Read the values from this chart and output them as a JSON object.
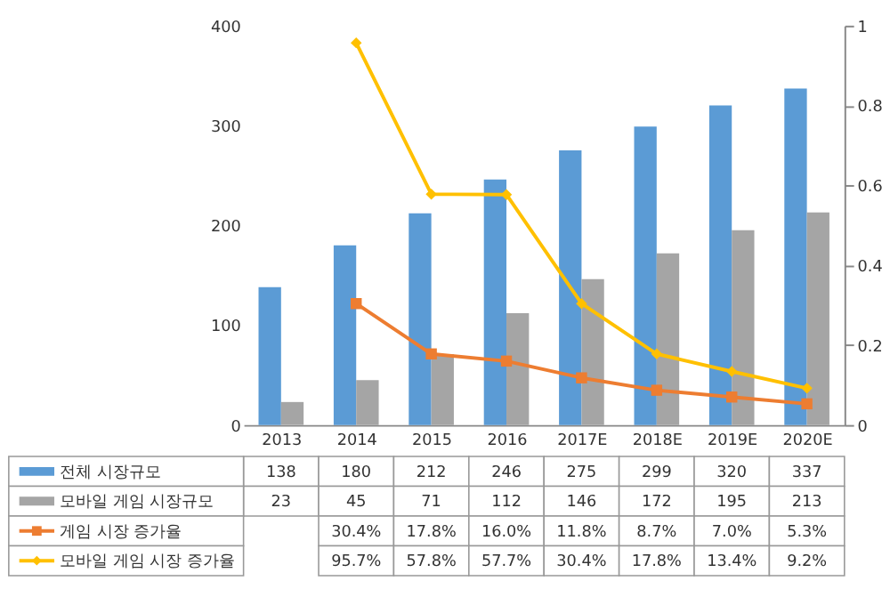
{
  "chart_data": {
    "type": "bar",
    "categories": [
      "2013",
      "2014",
      "2015",
      "2016",
      "2017E",
      "2018E",
      "2019E",
      "2020E"
    ],
    "series": [
      {
        "name": "전체 시장규모",
        "color": "#5b9bd5",
        "values": [
          138,
          180,
          212,
          246,
          275,
          299,
          320,
          337
        ]
      },
      {
        "name": "모바일 게임 시장규모",
        "color": "#a5a5a5",
        "values": [
          23,
          45,
          71,
          112,
          146,
          172,
          195,
          213
        ]
      },
      {
        "name": "게임 시장 증가율",
        "type": "line",
        "axis": "y2",
        "marker": "square",
        "color": "#ed7d31",
        "values": [
          null,
          0.304,
          0.178,
          0.16,
          0.118,
          0.087,
          0.07,
          0.053
        ],
        "value_labels": [
          null,
          "30.4%",
          "17.8%",
          "16.0%",
          "11.8%",
          "8.7%",
          "7.0%",
          "5.3%"
        ]
      },
      {
        "name": "모바일 게임 시장 증가율",
        "type": "line",
        "axis": "y2",
        "marker": "diamond",
        "color": "#ffc000",
        "values": [
          null,
          0.957,
          0.578,
          0.577,
          0.304,
          0.178,
          0.134,
          0.092
        ],
        "value_labels": [
          null,
          "95.7%",
          "57.8%",
          "57.7%",
          "30.4%",
          "17.8%",
          "13.4%",
          "9.2%"
        ]
      }
    ],
    "ylim": [
      0,
      400
    ],
    "yticks": [
      0,
      100,
      200,
      300,
      400
    ],
    "y2lim": [
      0,
      1
    ],
    "y2ticks": [
      0,
      0.2,
      0.4,
      0.6,
      0.8,
      1
    ],
    "grid": false,
    "legend": "bottom",
    "data_labels": true
  }
}
